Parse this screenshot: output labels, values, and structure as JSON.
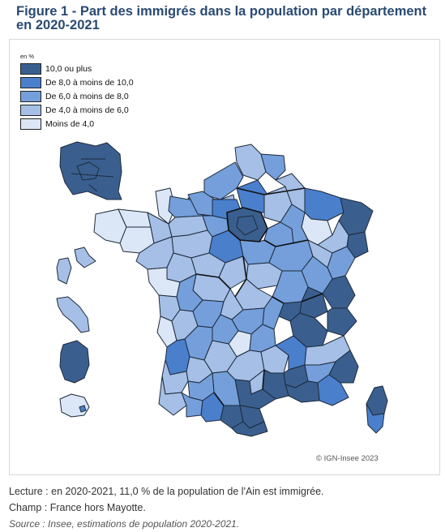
{
  "title": "Figure 1 - Part des immigrés dans la population par département en 2020-2021",
  "legend": {
    "unit": "en %",
    "items": [
      {
        "label": "10,0 ou plus",
        "color": "#3a5f8f"
      },
      {
        "label": "De 8,0 à moins de 10,0",
        "color": "#4a7fcc"
      },
      {
        "label": "De 6,0 à moins de 8,0",
        "color": "#749fdb"
      },
      {
        "label": "De 4,0 à moins de 6,0",
        "color": "#a5bfe6"
      },
      {
        "label": "Moins de 4,0",
        "color": "#dbe7f7"
      }
    ]
  },
  "credit": "© IGN-Insee 2023",
  "notes": {
    "lecture": "Lecture : en 2020-2021, 11,0 % de la population de l'Ain est immigrée.",
    "champ": "Champ : France hors Mayotte.",
    "source": "Source : Insee, estimations de population 2020-2021."
  }
}
